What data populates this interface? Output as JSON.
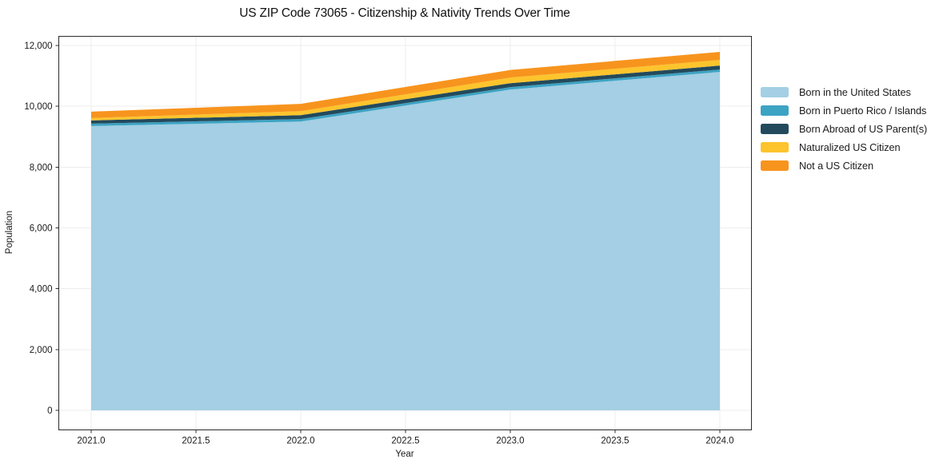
{
  "title": "US ZIP Code 73065 - Citizenship & Nativity Trends Over Time",
  "chart_data": {
    "type": "area",
    "stacked": true,
    "title": "US ZIP Code 73065 - Citizenship & Nativity Trends Over Time",
    "xlabel": "Year",
    "ylabel": "Population",
    "x": [
      2021,
      2022,
      2023,
      2024
    ],
    "series": [
      {
        "name": "Born in the United States",
        "color": "#a4cfe4",
        "values": [
          9350,
          9500,
          10550,
          11130
        ]
      },
      {
        "name": "Born in Puerto Rico / Islands",
        "color": "#3da3c3",
        "values": [
          80,
          80,
          80,
          80
        ]
      },
      {
        "name": "Born Abroad of US Parent(s)",
        "color": "#234a5c",
        "values": [
          105,
          130,
          130,
          130
        ]
      },
      {
        "name": "Naturalized US Citizen",
        "color": "#fdc42d",
        "values": [
          80,
          130,
          185,
          185
        ]
      },
      {
        "name": "Not a US Citizen",
        "color": "#f7941e",
        "values": [
          210,
          240,
          250,
          265
        ]
      }
    ],
    "stack_totals": [
      9825,
      10080,
      11195,
      11790
    ],
    "xlim": [
      2020.85,
      2024.15
    ],
    "ylim": [
      0,
      12000
    ],
    "x_ticks": [
      {
        "value": 2021.0,
        "label": "2021.0"
      },
      {
        "value": 2021.5,
        "label": "2021.5"
      },
      {
        "value": 2022.0,
        "label": "2022.0"
      },
      {
        "value": 2022.5,
        "label": "2022.5"
      },
      {
        "value": 2023.0,
        "label": "2023.0"
      },
      {
        "value": 2023.5,
        "label": "2023.5"
      },
      {
        "value": 2024.0,
        "label": "2024.0"
      }
    ],
    "y_ticks": [
      {
        "value": 0,
        "label": "0"
      },
      {
        "value": 2000,
        "label": "2,000"
      },
      {
        "value": 4000,
        "label": "4,000"
      },
      {
        "value": 6000,
        "label": "6,000"
      },
      {
        "value": 8000,
        "label": "8,000"
      },
      {
        "value": 10000,
        "label": "10,000"
      },
      {
        "value": 12000,
        "label": "12,000"
      }
    ],
    "grid": true,
    "legend_position": "right-outside"
  },
  "colors": {
    "spine": "#2b2b2b",
    "grid": "#ededed",
    "tick_text": "#1a1a1a",
    "background": "#ffffff"
  }
}
